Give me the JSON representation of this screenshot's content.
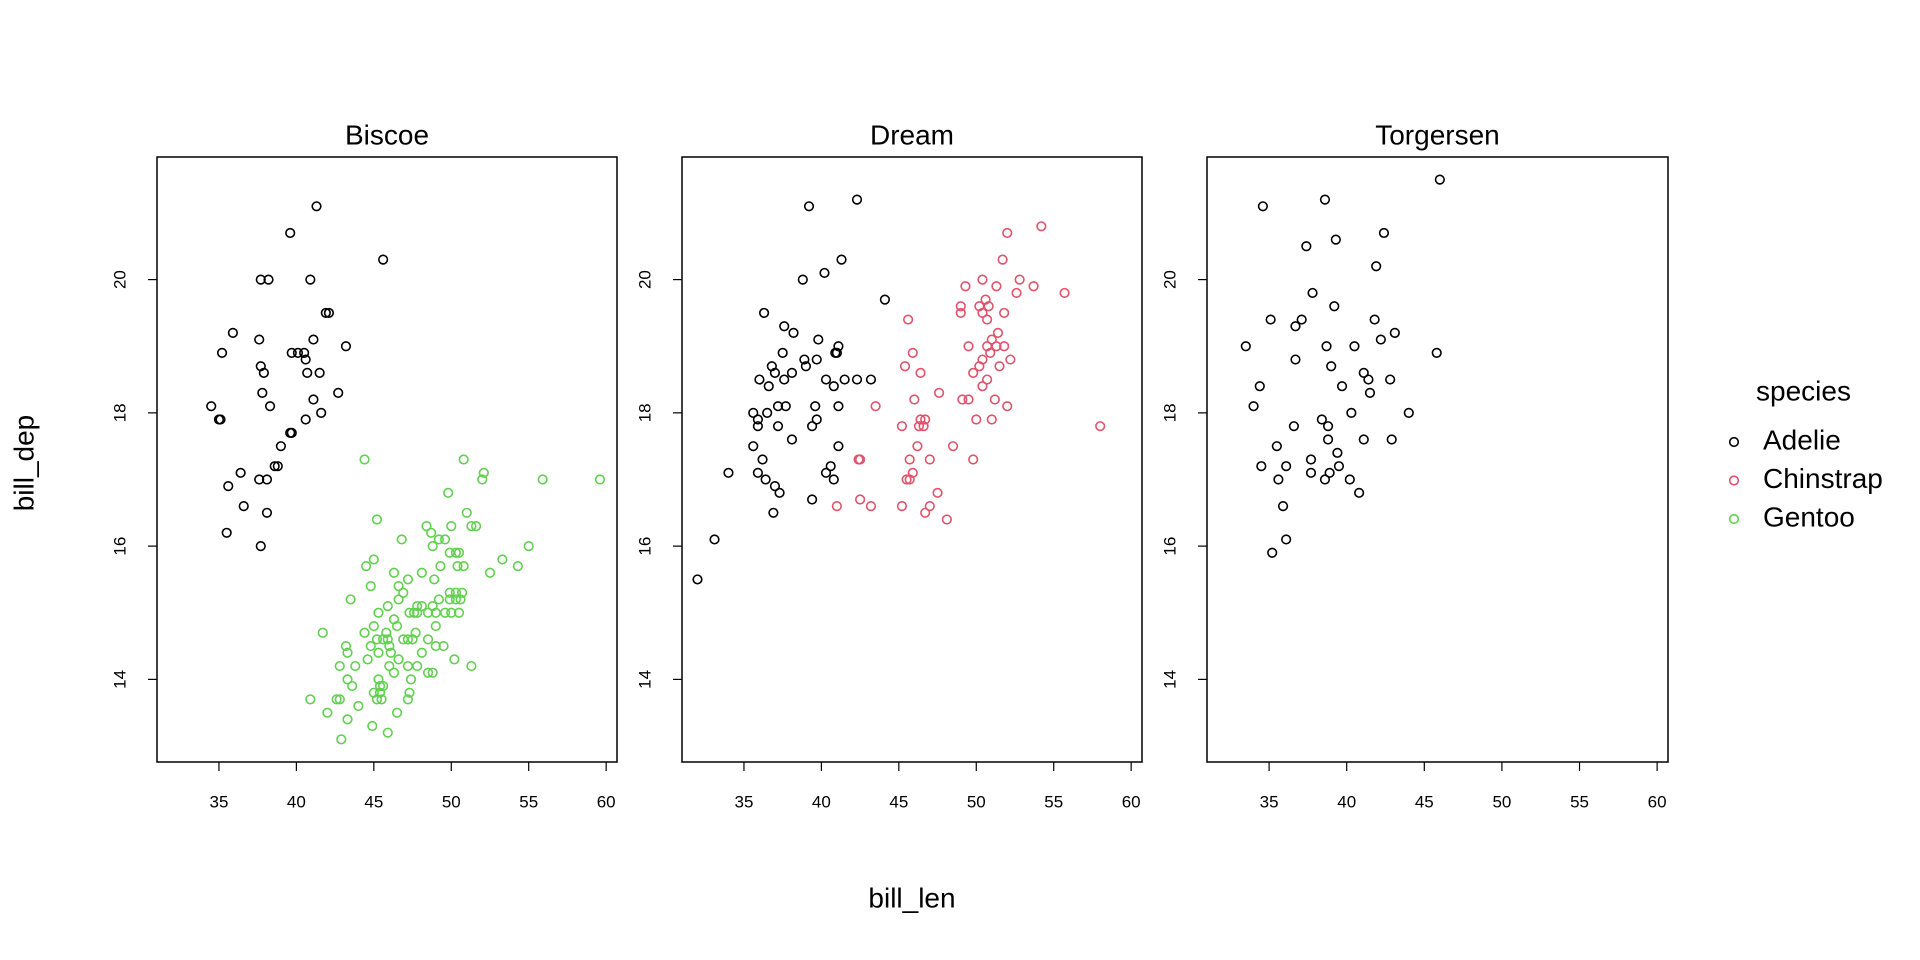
{
  "chart_data": [
    {
      "type": "scatter",
      "title": "Biscoe",
      "xlim": [
        31.0,
        60.7
      ],
      "ylim": [
        12.76,
        21.84
      ],
      "xticks": [
        35,
        40,
        45,
        50,
        55,
        60
      ],
      "yticks": [
        14,
        16,
        18,
        20
      ],
      "series": [
        {
          "name": "Adelie",
          "color": "#000000",
          "x": [
            41.3,
            39.6,
            45.6,
            37.7,
            38.2,
            40.9,
            41.9,
            42.1,
            35.9,
            37.6,
            41.1,
            43.2,
            35.2,
            39.7,
            40.1,
            40.5,
            40.6,
            37.7,
            37.9,
            40.7,
            41.5,
            37.8,
            42.7,
            41.1,
            34.5,
            38.3,
            41.6,
            35.0,
            35.1,
            40.6,
            39.6,
            39.7,
            39.0,
            38.6,
            38.8,
            36.4,
            37.6,
            38.1,
            35.6,
            36.6,
            38.1,
            35.5,
            37.7
          ],
          "values": [
            21.1,
            20.7,
            20.3,
            20.0,
            20.0,
            20.0,
            19.5,
            19.5,
            19.2,
            19.1,
            19.1,
            19.0,
            18.9,
            18.9,
            18.9,
            18.9,
            18.8,
            18.7,
            18.6,
            18.6,
            18.6,
            18.3,
            18.3,
            18.2,
            18.1,
            18.1,
            18.0,
            17.9,
            17.9,
            17.9,
            17.7,
            17.7,
            17.5,
            17.2,
            17.2,
            17.1,
            17.0,
            17.0,
            16.9,
            16.6,
            16.5,
            16.2,
            16.0
          ]
        },
        {
          "name": "Gentoo",
          "color": "#61D04F",
          "x": [
            44.4,
            50.8,
            52.1,
            52.0,
            55.9,
            59.6,
            49.8,
            45.2,
            51.0,
            48.4,
            51.3,
            51.6,
            48.7,
            50.0,
            46.8,
            49.2,
            49.6,
            48.8,
            55.0,
            49.9,
            50.3,
            50.5,
            45.0,
            53.3,
            44.5,
            49.3,
            50.4,
            50.8,
            54.3,
            46.3,
            48.1,
            52.5,
            47.2,
            48.9,
            44.8,
            46.6,
            46.9,
            49.9,
            50.3,
            50.7,
            43.5,
            46.6,
            49.2,
            49.9,
            50.3,
            50.6,
            45.9,
            47.8,
            48.1,
            48.8,
            45.3,
            47.3,
            47.6,
            47.8,
            48.5,
            49.0,
            49.6,
            50.0,
            50.5,
            46.3,
            45.0,
            46.5,
            49.0,
            41.7,
            44.4,
            45.8,
            47.7,
            48.5,
            45.2,
            45.6,
            45.9,
            46.9,
            47.2,
            47.5,
            49.0,
            43.2,
            44.8,
            46.0,
            49.5,
            43.3,
            45.3,
            46.1,
            48.1,
            44.6,
            46.6,
            47.2,
            50.2,
            42.8,
            43.8,
            46.0,
            47.8,
            51.3,
            48.5,
            48.8,
            46.3,
            43.3,
            45.3,
            47.4,
            43.6,
            45.4,
            45.6,
            45.0,
            45.4,
            47.3,
            40.9,
            42.6,
            42.8,
            45.2,
            45.5,
            47.2,
            44.0,
            42.0,
            46.5,
            43.3,
            44.9,
            45.9,
            42.9
          ],
          "values": [
            17.3,
            17.3,
            17.1,
            17.0,
            17.0,
            17.0,
            16.8,
            16.4,
            16.5,
            16.3,
            16.3,
            16.3,
            16.2,
            16.3,
            16.1,
            16.1,
            16.1,
            16.0,
            16.0,
            15.9,
            15.9,
            15.9,
            15.8,
            15.8,
            15.7,
            15.7,
            15.7,
            15.7,
            15.7,
            15.6,
            15.6,
            15.6,
            15.5,
            15.5,
            15.4,
            15.4,
            15.3,
            15.3,
            15.3,
            15.3,
            15.2,
            15.2,
            15.2,
            15.2,
            15.2,
            15.2,
            15.1,
            15.1,
            15.1,
            15.1,
            15.0,
            15.0,
            15.0,
            15.0,
            15.0,
            15.0,
            15.0,
            15.0,
            15.0,
            14.9,
            14.8,
            14.8,
            14.8,
            14.7,
            14.7,
            14.7,
            14.7,
            14.6,
            14.6,
            14.6,
            14.6,
            14.6,
            14.6,
            14.6,
            14.5,
            14.5,
            14.5,
            14.5,
            14.5,
            14.4,
            14.4,
            14.4,
            14.4,
            14.3,
            14.3,
            14.2,
            14.3,
            14.2,
            14.2,
            14.2,
            14.2,
            14.2,
            14.1,
            14.1,
            14.1,
            14.0,
            14.0,
            14.0,
            13.9,
            13.9,
            13.9,
            13.8,
            13.8,
            13.8,
            13.7,
            13.7,
            13.7,
            13.7,
            13.7,
            13.7,
            13.6,
            13.5,
            13.5,
            13.4,
            13.3,
            13.2,
            13.1
          ]
        }
      ]
    },
    {
      "type": "scatter",
      "title": "Dream",
      "xlim": [
        31.0,
        60.7
      ],
      "ylim": [
        12.76,
        21.84
      ],
      "xticks": [
        35,
        40,
        45,
        50,
        55,
        60
      ],
      "yticks": [
        14,
        16,
        18,
        20
      ],
      "series": [
        {
          "name": "Adelie",
          "color": "#000000",
          "x": [
            42.3,
            39.2,
            41.3,
            40.2,
            38.8,
            44.1,
            36.3,
            37.6,
            38.2,
            39.8,
            41.1,
            37.5,
            40.9,
            41.0,
            38.9,
            39.7,
            36.8,
            39.0,
            37.0,
            38.1,
            36.0,
            37.6,
            40.3,
            41.5,
            42.3,
            43.2,
            36.6,
            40.8,
            39.6,
            37.2,
            37.7,
            41.1,
            35.6,
            36.5,
            39.7,
            35.9,
            35.9,
            37.2,
            39.4,
            36.2,
            38.1,
            35.6,
            41.1,
            34.0,
            35.9,
            40.6,
            40.3,
            40.8,
            36.4,
            37.0,
            37.3,
            39.4,
            36.9,
            33.1,
            32.0
          ],
          "values": [
            21.2,
            21.1,
            20.3,
            20.1,
            20.0,
            19.7,
            19.5,
            19.3,
            19.2,
            19.1,
            19.0,
            18.9,
            18.9,
            18.9,
            18.8,
            18.8,
            18.7,
            18.7,
            18.6,
            18.6,
            18.5,
            18.5,
            18.5,
            18.5,
            18.5,
            18.5,
            18.4,
            18.4,
            18.1,
            18.1,
            18.1,
            18.1,
            18.0,
            18.0,
            17.9,
            17.9,
            17.8,
            17.8,
            17.8,
            17.3,
            17.6,
            17.5,
            17.5,
            17.1,
            17.1,
            17.2,
            17.1,
            17.0,
            17.0,
            16.9,
            16.8,
            16.7,
            16.5,
            16.1,
            15.5
          ]
        },
        {
          "name": "Chinstrap",
          "color": "#DF536B",
          "x": [
            54.2,
            52.0,
            51.7,
            50.4,
            52.8,
            53.7,
            51.3,
            49.3,
            55.7,
            52.6,
            50.6,
            49.0,
            50.2,
            50.8,
            49.0,
            50.4,
            51.8,
            45.6,
            50.7,
            51.4,
            51.0,
            49.5,
            50.7,
            51.3,
            51.8,
            45.9,
            50.4,
            52.2,
            50.9,
            45.4,
            50.2,
            51.5,
            46.4,
            49.8,
            50.7,
            50.4,
            47.6,
            46.0,
            49.1,
            49.5,
            51.2,
            43.5,
            52.0,
            50.0,
            51.0,
            46.4,
            46.7,
            58.0,
            45.2,
            46.3,
            46.6,
            46.2,
            48.5,
            42.4,
            42.5,
            45.7,
            47.0,
            49.8,
            45.9,
            45.5,
            45.7,
            47.5,
            42.5,
            41.0,
            43.2,
            45.2,
            47.0,
            46.7,
            48.1
          ],
          "values": [
            20.8,
            20.7,
            20.3,
            20.0,
            20.0,
            19.9,
            19.9,
            19.9,
            19.8,
            19.8,
            19.7,
            19.6,
            19.6,
            19.6,
            19.5,
            19.5,
            19.5,
            19.4,
            19.4,
            19.2,
            19.1,
            19.0,
            19.0,
            19.0,
            19.0,
            18.9,
            18.8,
            18.8,
            18.9,
            18.7,
            18.7,
            18.7,
            18.6,
            18.6,
            18.5,
            18.4,
            18.3,
            18.2,
            18.2,
            18.2,
            18.2,
            18.1,
            18.1,
            17.9,
            17.9,
            17.9,
            17.9,
            17.8,
            17.8,
            17.8,
            17.8,
            17.5,
            17.5,
            17.3,
            17.3,
            17.3,
            17.3,
            17.3,
            17.1,
            17.0,
            17.0,
            16.8,
            16.7,
            16.6,
            16.6,
            16.6,
            16.6,
            16.5,
            16.4
          ]
        }
      ]
    },
    {
      "type": "scatter",
      "title": "Torgersen",
      "xlim": [
        31.0,
        60.7
      ],
      "ylim": [
        12.76,
        21.84
      ],
      "xticks": [
        35,
        40,
        45,
        50,
        55,
        60
      ],
      "yticks": [
        14,
        16,
        18,
        20
      ],
      "series": [
        {
          "name": "Adelie",
          "color": "#000000",
          "x": [
            46.0,
            38.6,
            34.6,
            42.4,
            39.3,
            37.4,
            41.9,
            37.8,
            39.2,
            35.1,
            37.1,
            41.8,
            36.7,
            43.1,
            42.2,
            33.5,
            38.7,
            40.5,
            45.8,
            36.7,
            39.0,
            41.1,
            41.4,
            42.8,
            34.4,
            39.7,
            41.5,
            34.0,
            40.3,
            44.0,
            38.4,
            38.8,
            36.6,
            42.9,
            38.8,
            41.1,
            35.5,
            39.4,
            37.7,
            34.5,
            36.1,
            39.5,
            37.7,
            38.9,
            35.6,
            38.6,
            40.2,
            40.8,
            35.9,
            36.1,
            35.2
          ],
          "values": [
            21.5,
            21.2,
            21.1,
            20.7,
            20.6,
            20.5,
            20.2,
            19.8,
            19.6,
            19.4,
            19.4,
            19.4,
            19.3,
            19.2,
            19.1,
            19.0,
            19.0,
            19.0,
            18.9,
            18.8,
            18.7,
            18.6,
            18.5,
            18.5,
            18.4,
            18.4,
            18.3,
            18.1,
            18.0,
            18.0,
            17.9,
            17.8,
            17.8,
            17.6,
            17.6,
            17.6,
            17.5,
            17.4,
            17.3,
            17.2,
            17.2,
            17.2,
            17.1,
            17.1,
            17.0,
            17.0,
            17.0,
            16.8,
            16.6,
            16.1,
            15.9
          ]
        }
      ]
    }
  ],
  "x_label": "bill_len",
  "y_label": "bill_dep",
  "legend": {
    "title": "species",
    "entries": [
      {
        "name": "Adelie",
        "color": "#000000"
      },
      {
        "name": "Chinstrap",
        "color": "#DF536B"
      },
      {
        "name": "Gentoo",
        "color": "#61D04F"
      }
    ]
  }
}
